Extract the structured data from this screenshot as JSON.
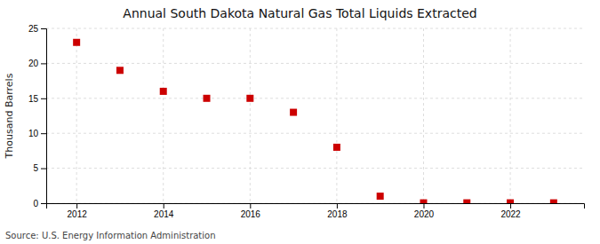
{
  "chart_data": {
    "type": "scatter",
    "title": "Annual South Dakota Natural Gas Total Liquids Extracted",
    "ylabel": "Thousand Barrels",
    "source": "Source: U.S. Energy Information Administration",
    "x": [
      2012,
      2013,
      2014,
      2015,
      2016,
      2017,
      2018,
      2019,
      2020,
      2021,
      2022,
      2023
    ],
    "y": [
      23,
      19,
      16,
      15,
      15,
      13,
      8,
      1,
      0.05,
      0.05,
      0.05,
      0.05
    ],
    "xlim": [
      2011.3,
      2023.7
    ],
    "ylim": [
      0,
      25
    ],
    "xticks": [
      2012,
      2014,
      2016,
      2018,
      2020,
      2022
    ],
    "yticks": [
      0,
      5,
      10,
      15,
      20,
      25
    ],
    "color": "#cc0000",
    "marker": "square",
    "grid": true
  }
}
